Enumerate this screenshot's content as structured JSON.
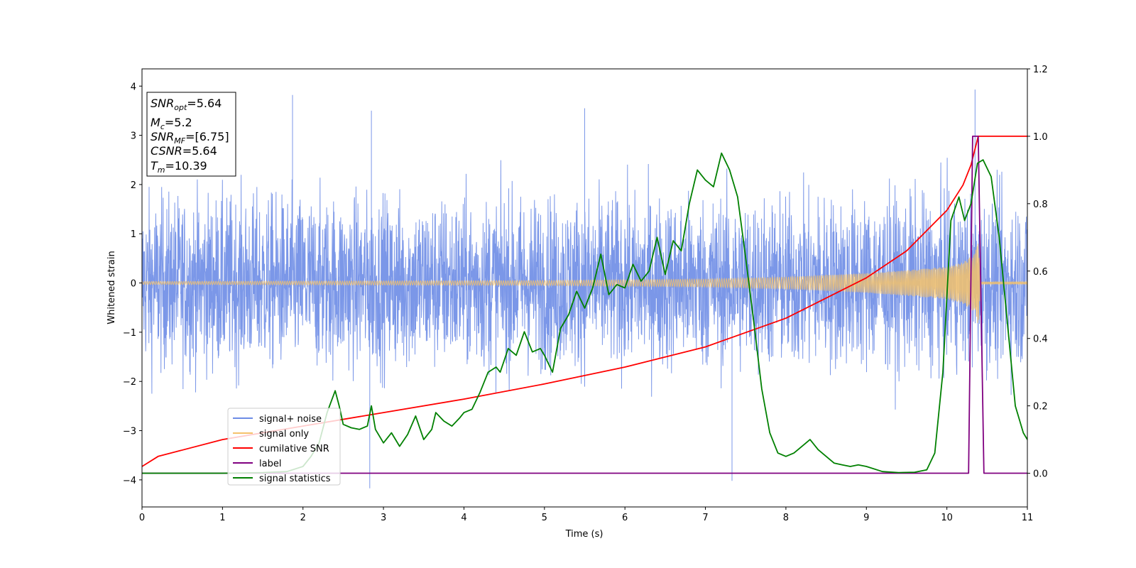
{
  "chart_data": {
    "type": "line",
    "xlabel": "Time (s)",
    "ylabel": "Whitened strain",
    "xlim": [
      0,
      11
    ],
    "ylim": [
      -4.55,
      4.35
    ],
    "y2lim": [
      -0.1,
      1.2
    ],
    "x_ticks": [
      "0",
      "1",
      "2",
      "3",
      "4",
      "5",
      "6",
      "7",
      "8",
      "9",
      "10",
      "11"
    ],
    "y_ticks": [
      "−4",
      "−3",
      "−2",
      "−1",
      "0",
      "1",
      "2",
      "3",
      "4"
    ],
    "y2_ticks": [
      "0.0",
      "0.2",
      "0.4",
      "0.6",
      "0.8",
      "1.0",
      "1.2"
    ],
    "grid": false,
    "legend_placement": "lower-left",
    "annotation": {
      "snr_opt": {
        "base": "SNR",
        "sub": "opt",
        "value": "=5.64"
      },
      "mc": {
        "base": "M",
        "sub": "c",
        "value": "=5.2"
      },
      "snr_mf": {
        "base": "SNR",
        "sub": "MF",
        "value": "=[6.75]"
      },
      "csnr": {
        "base": "CSNR",
        "value": "=5.64"
      },
      "tm": {
        "base": "T",
        "sub": "m",
        "value": "=10.39"
      }
    },
    "series": [
      {
        "name": "signal+ noise",
        "color": "#6d8ce6",
        "axis": "left",
        "description_type": "noise",
        "typical_range": [
          -2.6,
          2.6
        ],
        "extremes": [
          [
            1.87,
            3.82
          ],
          [
            10.35,
            3.93
          ],
          [
            2.83,
            -4.17
          ],
          [
            7.33,
            -4.02
          ],
          [
            5.5,
            3.55
          ],
          [
            2.85,
            3.5
          ]
        ]
      },
      {
        "name": "signal only",
        "color": "#f5c26b",
        "axis": "left",
        "envelope": [
          [
            0,
            0.03
          ],
          [
            5,
            0.05
          ],
          [
            7,
            0.08
          ],
          [
            8,
            0.12
          ],
          [
            9,
            0.2
          ],
          [
            9.5,
            0.26
          ],
          [
            10,
            0.33
          ],
          [
            10.2,
            0.42
          ],
          [
            10.35,
            0.6
          ],
          [
            10.39,
            0.9
          ],
          [
            10.42,
            0.02
          ],
          [
            11,
            0.02
          ]
        ]
      },
      {
        "name": "cumilative SNR",
        "color": "#ff0000",
        "axis": "right",
        "points": [
          [
            0,
            0.02
          ],
          [
            0.2,
            0.05
          ],
          [
            1,
            0.1
          ],
          [
            2,
            0.14
          ],
          [
            3,
            0.18
          ],
          [
            4,
            0.22
          ],
          [
            5,
            0.265
          ],
          [
            6,
            0.315
          ],
          [
            7,
            0.375
          ],
          [
            8,
            0.46
          ],
          [
            9,
            0.58
          ],
          [
            9.5,
            0.66
          ],
          [
            10,
            0.78
          ],
          [
            10.2,
            0.855
          ],
          [
            10.3,
            0.915
          ],
          [
            10.39,
            1.0
          ],
          [
            11,
            1.0
          ]
        ]
      },
      {
        "name": "label",
        "color": "#800080",
        "axis": "right",
        "points": [
          [
            0,
            0
          ],
          [
            10.27,
            0
          ],
          [
            10.32,
            1.0
          ],
          [
            10.39,
            1.0
          ],
          [
            10.46,
            0
          ],
          [
            11,
            0
          ]
        ]
      },
      {
        "name": "signal statistics",
        "color": "#008000",
        "axis": "right",
        "points": [
          [
            0,
            0
          ],
          [
            1,
            0
          ],
          [
            1.5,
            0.002
          ],
          [
            1.8,
            0.005
          ],
          [
            2.0,
            0.02
          ],
          [
            2.1,
            0.05
          ],
          [
            2.2,
            0.09
          ],
          [
            2.3,
            0.18
          ],
          [
            2.4,
            0.245
          ],
          [
            2.45,
            0.2
          ],
          [
            2.5,
            0.145
          ],
          [
            2.6,
            0.135
          ],
          [
            2.7,
            0.13
          ],
          [
            2.8,
            0.14
          ],
          [
            2.85,
            0.2
          ],
          [
            2.9,
            0.13
          ],
          [
            3.0,
            0.09
          ],
          [
            3.1,
            0.12
          ],
          [
            3.2,
            0.08
          ],
          [
            3.3,
            0.115
          ],
          [
            3.4,
            0.17
          ],
          [
            3.5,
            0.1
          ],
          [
            3.6,
            0.13
          ],
          [
            3.65,
            0.18
          ],
          [
            3.75,
            0.155
          ],
          [
            3.85,
            0.14
          ],
          [
            3.95,
            0.165
          ],
          [
            4.0,
            0.18
          ],
          [
            4.1,
            0.19
          ],
          [
            4.2,
            0.24
          ],
          [
            4.3,
            0.3
          ],
          [
            4.4,
            0.315
          ],
          [
            4.45,
            0.3
          ],
          [
            4.55,
            0.37
          ],
          [
            4.65,
            0.35
          ],
          [
            4.75,
            0.42
          ],
          [
            4.85,
            0.36
          ],
          [
            4.95,
            0.37
          ],
          [
            5.0,
            0.35
          ],
          [
            5.1,
            0.3
          ],
          [
            5.2,
            0.43
          ],
          [
            5.3,
            0.47
          ],
          [
            5.4,
            0.54
          ],
          [
            5.5,
            0.49
          ],
          [
            5.6,
            0.55
          ],
          [
            5.7,
            0.65
          ],
          [
            5.8,
            0.53
          ],
          [
            5.9,
            0.56
          ],
          [
            6.0,
            0.55
          ],
          [
            6.1,
            0.62
          ],
          [
            6.2,
            0.57
          ],
          [
            6.3,
            0.6
          ],
          [
            6.4,
            0.7
          ],
          [
            6.5,
            0.59
          ],
          [
            6.6,
            0.69
          ],
          [
            6.7,
            0.66
          ],
          [
            6.8,
            0.8
          ],
          [
            6.9,
            0.9
          ],
          [
            7.0,
            0.87
          ],
          [
            7.1,
            0.85
          ],
          [
            7.2,
            0.95
          ],
          [
            7.3,
            0.9
          ],
          [
            7.4,
            0.82
          ],
          [
            7.5,
            0.64
          ],
          [
            7.6,
            0.45
          ],
          [
            7.7,
            0.25
          ],
          [
            7.8,
            0.12
          ],
          [
            7.9,
            0.06
          ],
          [
            8.0,
            0.05
          ],
          [
            8.1,
            0.06
          ],
          [
            8.2,
            0.08
          ],
          [
            8.3,
            0.1
          ],
          [
            8.4,
            0.07
          ],
          [
            8.5,
            0.05
          ],
          [
            8.6,
            0.03
          ],
          [
            8.7,
            0.025
          ],
          [
            8.8,
            0.02
          ],
          [
            8.9,
            0.025
          ],
          [
            9.0,
            0.02
          ],
          [
            9.2,
            0.005
          ],
          [
            9.4,
            0.002
          ],
          [
            9.6,
            0.003
          ],
          [
            9.75,
            0.01
          ],
          [
            9.85,
            0.06
          ],
          [
            9.95,
            0.3
          ],
          [
            10.05,
            0.75
          ],
          [
            10.15,
            0.82
          ],
          [
            10.22,
            0.75
          ],
          [
            10.3,
            0.8
          ],
          [
            10.38,
            0.92
          ],
          [
            10.45,
            0.93
          ],
          [
            10.55,
            0.88
          ],
          [
            10.65,
            0.7
          ],
          [
            10.75,
            0.45
          ],
          [
            10.85,
            0.2
          ],
          [
            10.95,
            0.12
          ],
          [
            11.0,
            0.1
          ]
        ]
      }
    ]
  }
}
